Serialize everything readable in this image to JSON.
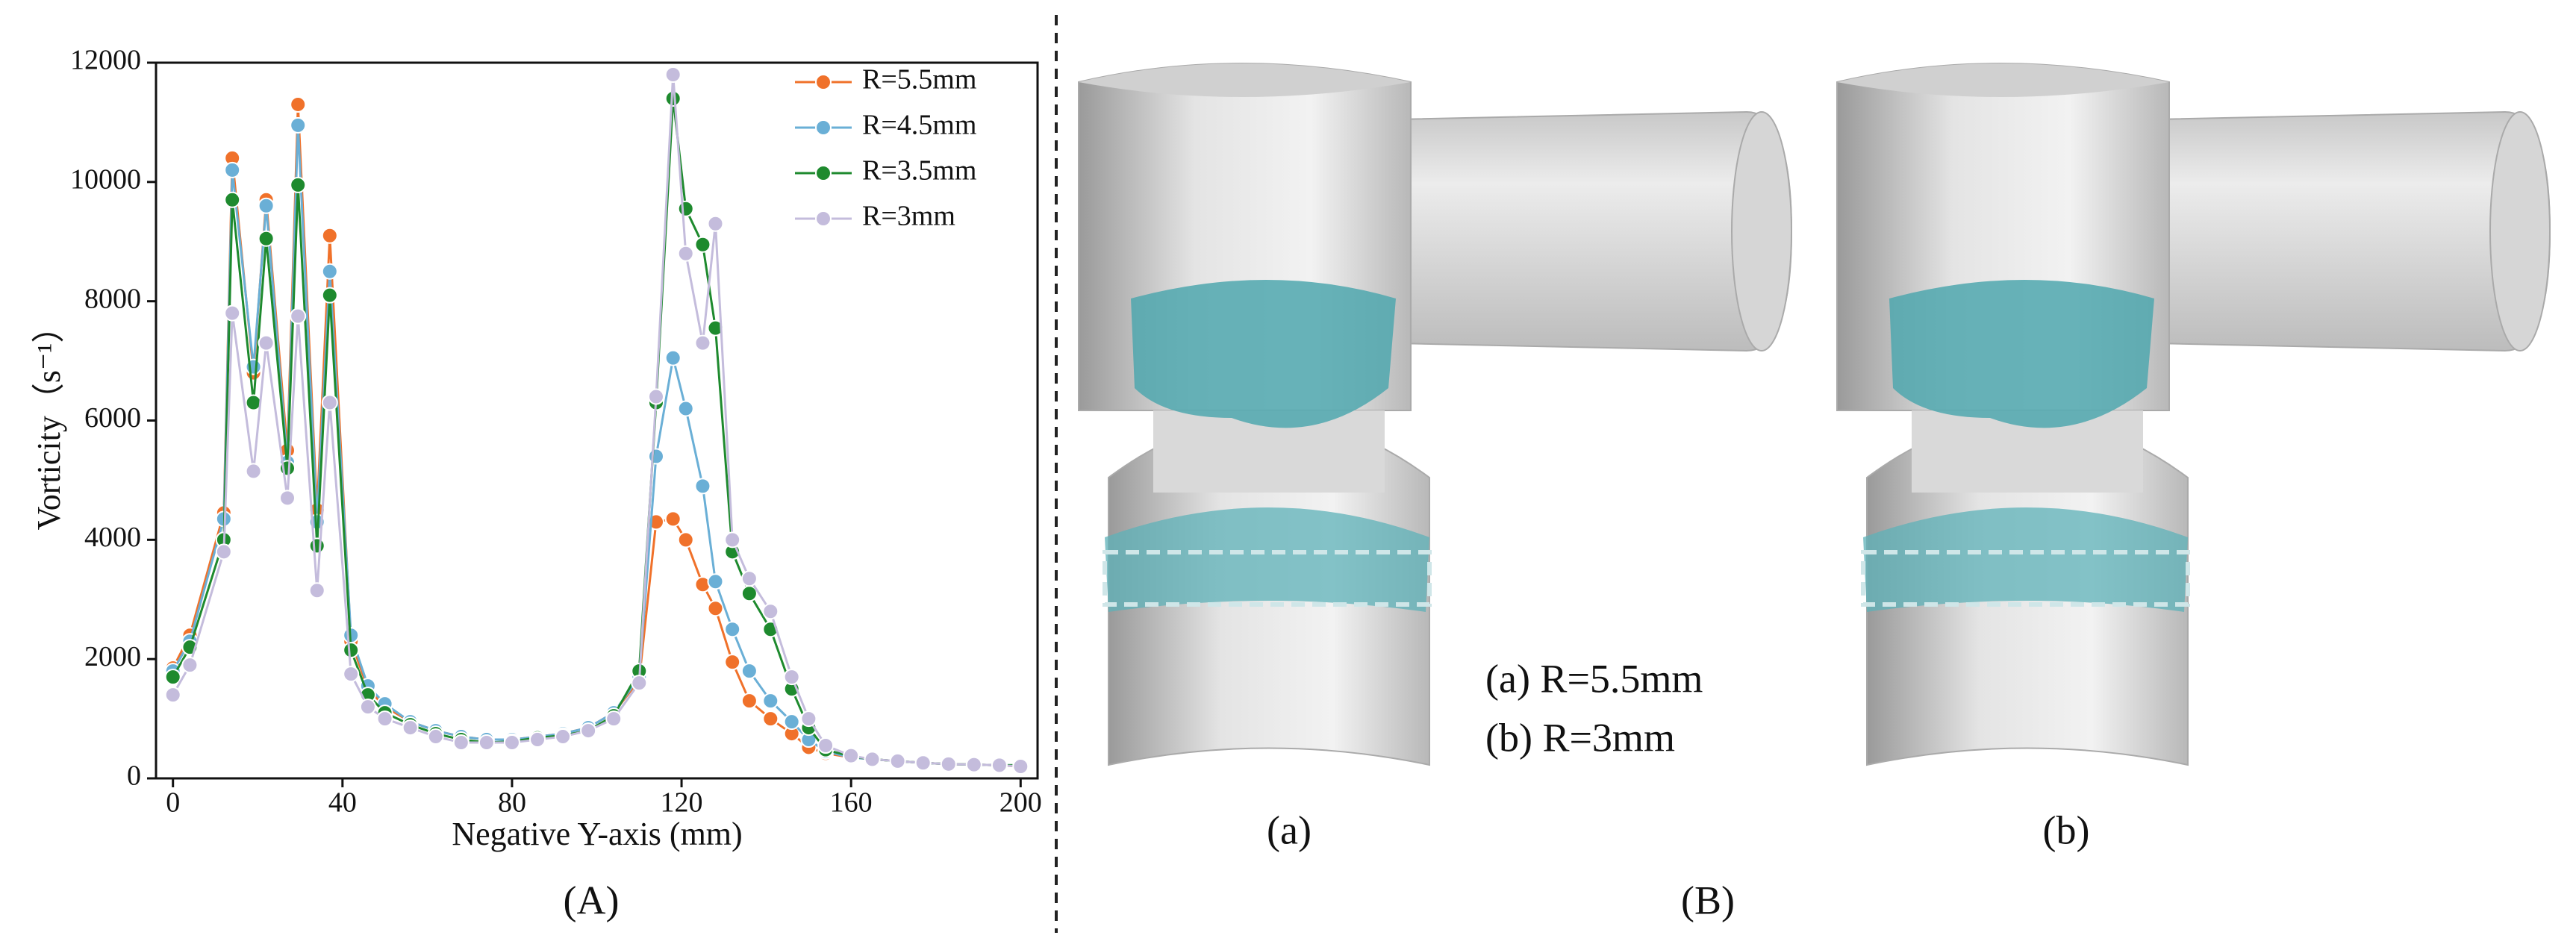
{
  "chart_data": {
    "type": "line",
    "xlabel": "Negative Y-axis (mm)",
    "ylabel": "Vorticity（s⁻¹）",
    "x": [
      0,
      4,
      12,
      14,
      19,
      22,
      27,
      29.5,
      34,
      37,
      42,
      46,
      50,
      56,
      62,
      68,
      74,
      80,
      86,
      92,
      98,
      104,
      110,
      114,
      118,
      121,
      125,
      128,
      132,
      136,
      141,
      146,
      150,
      154,
      160,
      165,
      171,
      177,
      183,
      189,
      195,
      200
    ],
    "series": [
      {
        "name": "R=5.5mm",
        "color": "#f0712a",
        "values": [
          1850,
          2400,
          4450,
          10400,
          6800,
          9700,
          5500,
          11300,
          4500,
          9100,
          2300,
          1500,
          1200,
          950,
          800,
          700,
          650,
          650,
          700,
          750,
          850,
          1100,
          1650,
          4300,
          4350,
          4000,
          3250,
          2850,
          1950,
          1300,
          1000,
          750,
          520,
          420,
          350,
          320,
          290,
          260,
          240,
          230,
          220,
          200
        ]
      },
      {
        "name": "R=4.5mm",
        "color": "#6aafd6",
        "values": [
          1800,
          2300,
          4350,
          10200,
          6900,
          9600,
          5300,
          10950,
          4300,
          8500,
          2400,
          1550,
          1250,
          950,
          800,
          700,
          650,
          650,
          700,
          750,
          850,
          1100,
          1700,
          5400,
          7050,
          6200,
          4900,
          3300,
          2500,
          1800,
          1300,
          950,
          650,
          450,
          350,
          320,
          290,
          260,
          240,
          230,
          220,
          220
        ]
      },
      {
        "name": "R=3.5mm",
        "color": "#1e8a2e",
        "values": [
          1700,
          2200,
          4000,
          9700,
          6300,
          9050,
          5200,
          9950,
          3900,
          8100,
          2150,
          1400,
          1100,
          900,
          750,
          650,
          600,
          620,
          680,
          720,
          800,
          1050,
          1800,
          6300,
          11400,
          9550,
          8950,
          7550,
          3800,
          3100,
          2500,
          1500,
          850,
          480,
          370,
          320,
          290,
          260,
          240,
          230,
          220,
          220
        ]
      },
      {
        "name": "R=3mm",
        "color": "#c4bcdc",
        "values": [
          1400,
          1900,
          3800,
          7800,
          5150,
          7300,
          4700,
          7750,
          3150,
          6300,
          1750,
          1200,
          1000,
          850,
          700,
          600,
          600,
          600,
          650,
          700,
          800,
          1000,
          1600,
          6400,
          11800,
          8800,
          7300,
          9300,
          4000,
          3350,
          2800,
          1700,
          1000,
          550,
          380,
          320,
          290,
          260,
          240,
          230,
          220,
          200
        ]
      }
    ],
    "xlim": [
      -4,
      204
    ],
    "ylim": [
      0,
      12000
    ],
    "xticks": [
      0,
      40,
      80,
      120,
      160,
      200
    ],
    "yticks": [
      0,
      2000,
      4000,
      6000,
      8000,
      10000,
      12000
    ],
    "grid": false,
    "legend": "upper right",
    "caption": "(A)"
  },
  "renders": {
    "legend_a": "(a) R=5.5mm",
    "legend_b": "(b) R=3mm",
    "label_a": "(a)",
    "label_b": "(b)",
    "caption": "(B)"
  }
}
